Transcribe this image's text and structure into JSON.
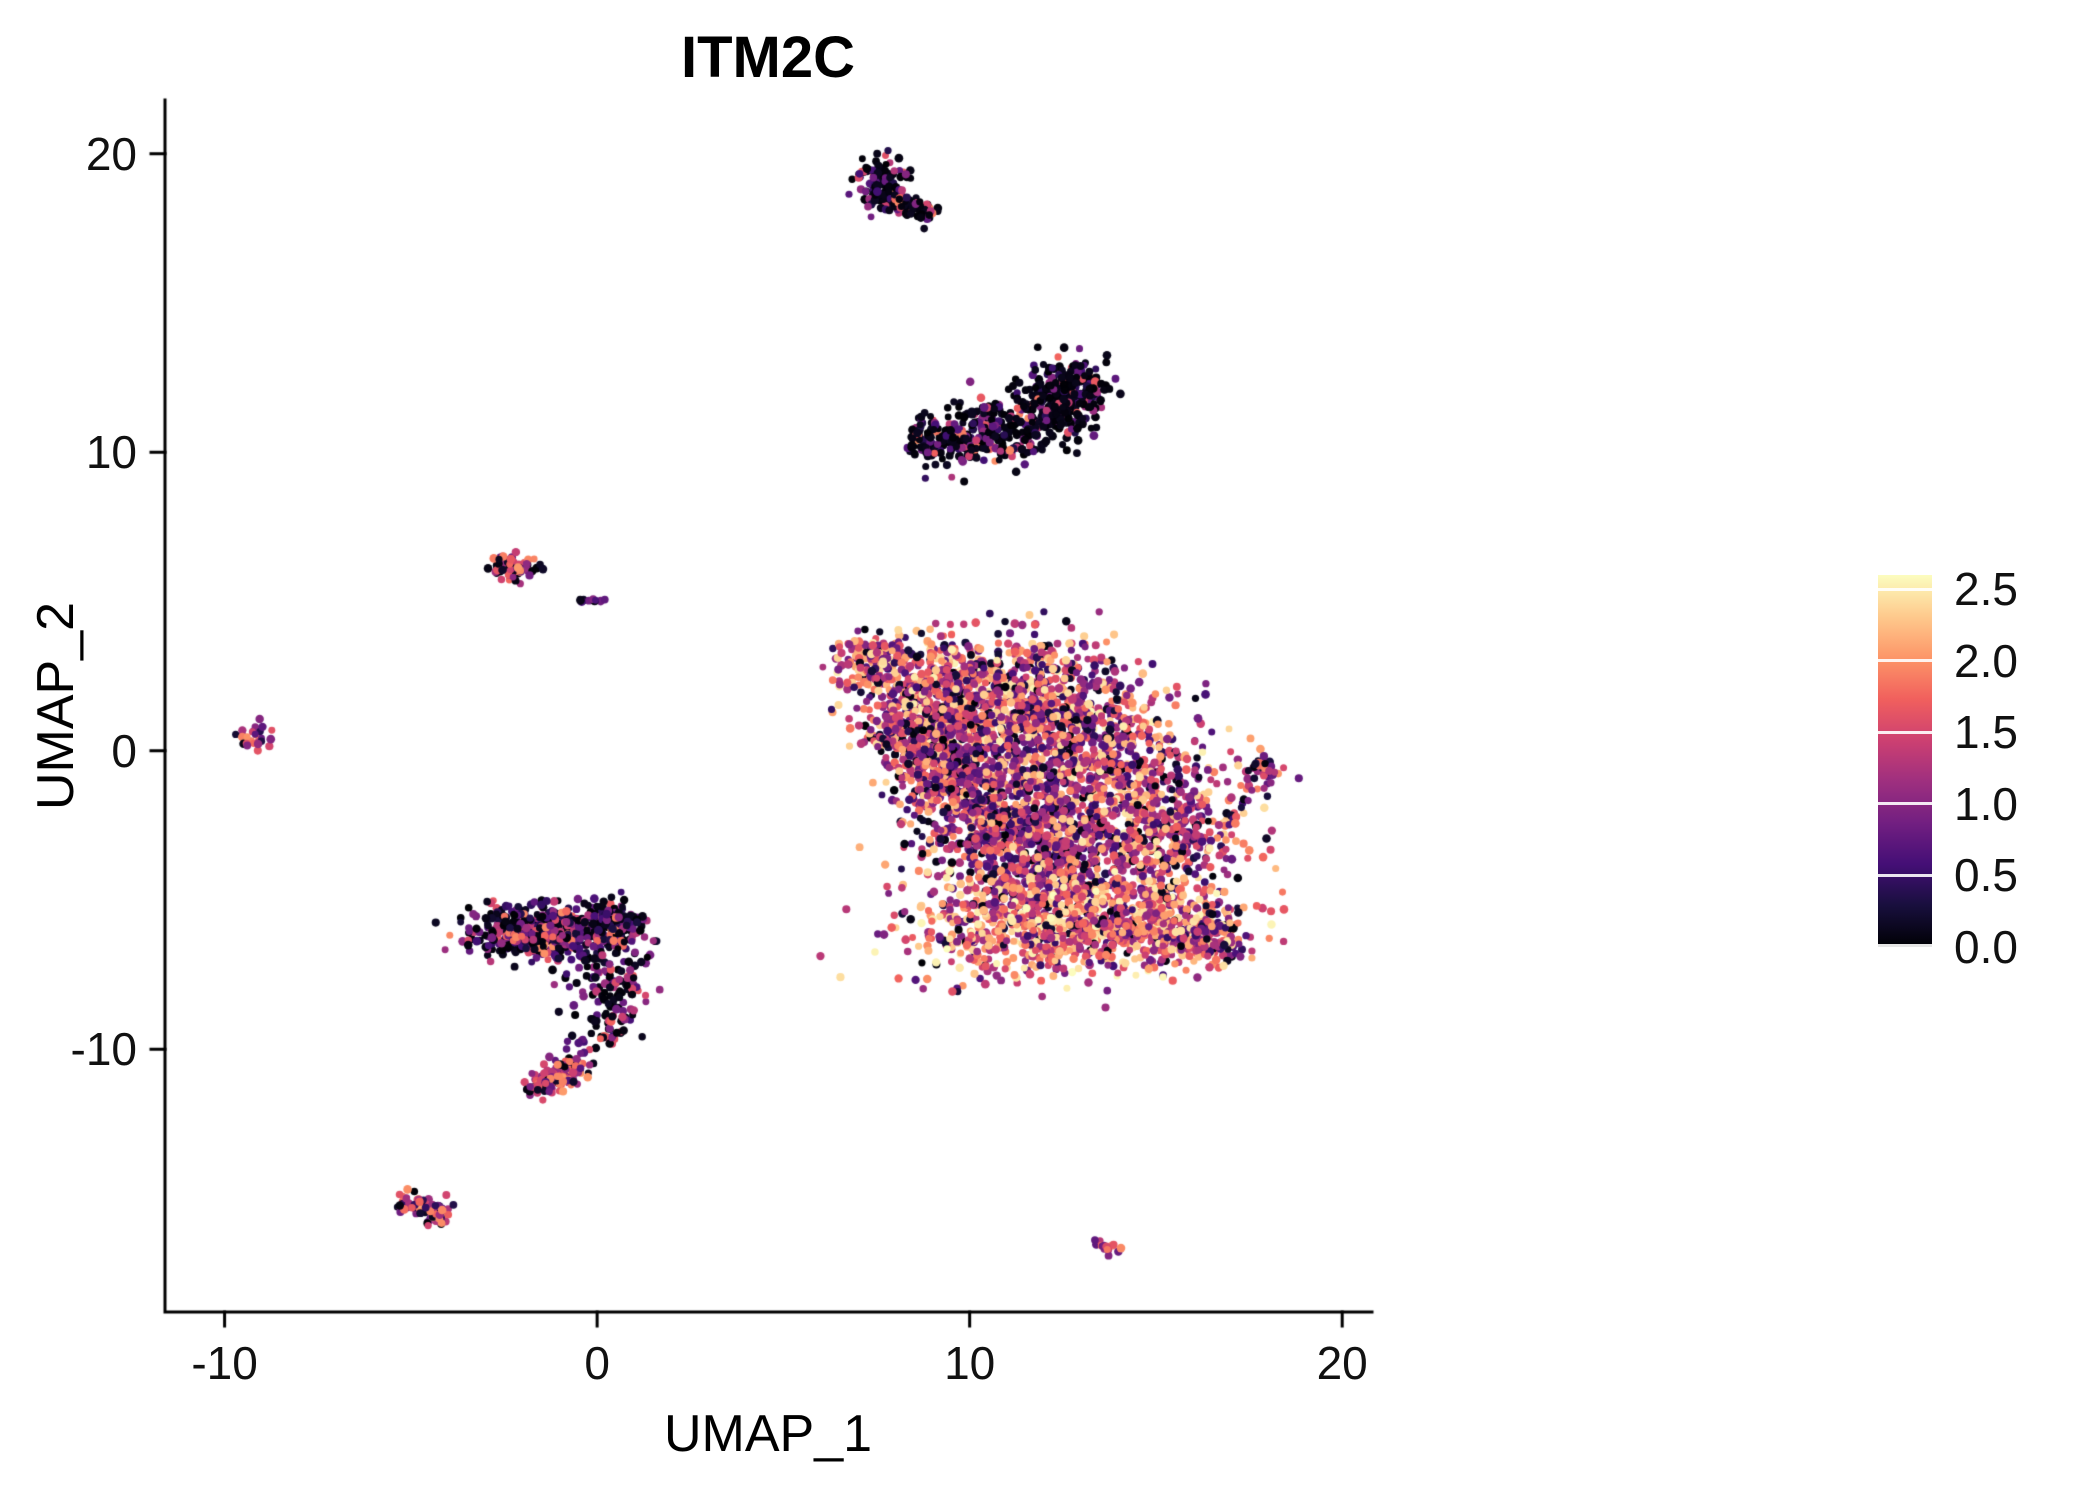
{
  "chart_data": {
    "type": "scatter",
    "title": "ITM2C",
    "xlabel": "UMAP_1",
    "ylabel": "UMAP_2",
    "xlim": [
      -11.6,
      20.8
    ],
    "ylim": [
      -18.8,
      21.8
    ],
    "grid": false,
    "x_ticks": [
      {
        "label": "-10",
        "v": -10
      },
      {
        "label": "0",
        "v": 0
      },
      {
        "label": "10",
        "v": 10
      },
      {
        "label": "20",
        "v": 20
      }
    ],
    "y_ticks": [
      {
        "label": "20",
        "v": 20
      },
      {
        "label": "10",
        "v": 10
      },
      {
        "label": "0",
        "v": 0
      },
      {
        "label": "-10",
        "v": -10
      }
    ],
    "legend": {
      "position": "right",
      "vmin": 0.0,
      "vmax": 2.6,
      "ticks": [
        {
          "label": "2.5",
          "v": 2.5
        },
        {
          "label": "2.0",
          "v": 2.0
        },
        {
          "label": "1.5",
          "v": 1.5
        },
        {
          "label": "1.0",
          "v": 1.0
        },
        {
          "label": "0.5",
          "v": 0.5
        },
        {
          "label": "0.0",
          "v": 0.0
        }
      ]
    },
    "palette": {
      "name": "magma",
      "colors": [
        [
          0,
          0,
          4
        ],
        [
          24,
          15,
          61
        ],
        [
          68,
          15,
          118
        ],
        [
          114,
          31,
          129
        ],
        [
          158,
          47,
          127
        ],
        [
          205,
          64,
          113
        ],
        [
          241,
          96,
          93
        ],
        [
          253,
          150,
          104
        ],
        [
          254,
          202,
          141
        ],
        [
          252,
          253,
          191
        ]
      ]
    },
    "point_radius_px": 4,
    "clusters": [
      {
        "name": "top-comet-head",
        "shape": "gauss",
        "cx": 7.65,
        "cy": 18.95,
        "sx": 0.3,
        "sy": 0.42,
        "n": 115,
        "values": [
          {
            "p": 0.62,
            "min": 0.0,
            "max": 0.15
          },
          {
            "p": 0.2,
            "min": 0.3,
            "max": 0.9
          },
          {
            "p": 0.18,
            "min": 0.9,
            "max": 2.0
          }
        ]
      },
      {
        "name": "top-comet-tail",
        "shape": "seg",
        "x1": 7.9,
        "y1": 18.55,
        "x2": 8.95,
        "y2": 17.85,
        "w": 0.17,
        "n": 70,
        "values": [
          {
            "p": 0.62,
            "min": 0.0,
            "max": 0.15
          },
          {
            "p": 0.2,
            "min": 0.3,
            "max": 0.9
          },
          {
            "p": 0.18,
            "min": 0.9,
            "max": 2.0
          }
        ]
      },
      {
        "name": "crescent-body",
        "shape": "arc",
        "p0": [
          8.4,
          10.55
        ],
        "p1": [
          11.2,
          9.85
        ],
        "p2": [
          13.2,
          12.75
        ],
        "w": 0.5,
        "n": 540,
        "values": [
          {
            "p": 0.66,
            "min": 0.0,
            "max": 0.15
          },
          {
            "p": 0.17,
            "min": 0.3,
            "max": 0.9
          },
          {
            "p": 0.17,
            "min": 0.9,
            "max": 2.0
          }
        ]
      },
      {
        "name": "crescent-end",
        "shape": "gauss",
        "cx": 12.65,
        "cy": 11.9,
        "sx": 0.45,
        "sy": 0.6,
        "n": 150,
        "values": [
          {
            "p": 0.78,
            "min": 0.0,
            "max": 0.12
          },
          {
            "p": 0.12,
            "min": 0.3,
            "max": 0.9
          },
          {
            "p": 0.1,
            "min": 0.9,
            "max": 1.8
          }
        ]
      },
      {
        "name": "main-upper-tip",
        "shape": "gauss",
        "cx": 7.35,
        "cy": 3.0,
        "sx": 0.5,
        "sy": 0.45,
        "n": 130,
        "values": [
          {
            "p": 0.42,
            "min": 1.5,
            "max": 2.55
          },
          {
            "p": 0.3,
            "min": 0.9,
            "max": 1.5
          },
          {
            "p": 0.17,
            "min": 0.4,
            "max": 0.9
          },
          {
            "p": 0.11,
            "min": 0.0,
            "max": 0.3
          }
        ]
      },
      {
        "name": "main-upper-left",
        "shape": "gauss",
        "cx": 8.9,
        "cy": 1.8,
        "sx": 0.95,
        "sy": 0.95,
        "n": 430,
        "values": [
          {
            "p": 0.42,
            "min": 1.5,
            "max": 2.55
          },
          {
            "p": 0.3,
            "min": 0.9,
            "max": 1.5
          },
          {
            "p": 0.17,
            "min": 0.4,
            "max": 0.9
          },
          {
            "p": 0.11,
            "min": 0.0,
            "max": 0.3
          }
        ]
      },
      {
        "name": "main-upper-mid",
        "shape": "gauss",
        "cx": 11.3,
        "cy": 1.9,
        "sx": 1.3,
        "sy": 1.05,
        "n": 640,
        "values": [
          {
            "p": 0.42,
            "min": 1.5,
            "max": 2.55
          },
          {
            "p": 0.3,
            "min": 0.9,
            "max": 1.5
          },
          {
            "p": 0.17,
            "min": 0.4,
            "max": 0.9
          },
          {
            "p": 0.11,
            "min": 0.0,
            "max": 0.3
          }
        ]
      },
      {
        "name": "main-left-edge",
        "shape": "gauss",
        "cx": 8.4,
        "cy": 0.6,
        "sx": 0.6,
        "sy": 0.6,
        "n": 170,
        "values": [
          {
            "p": 0.42,
            "min": 1.5,
            "max": 2.55
          },
          {
            "p": 0.3,
            "min": 0.9,
            "max": 1.5
          },
          {
            "p": 0.17,
            "min": 0.4,
            "max": 0.9
          },
          {
            "p": 0.11,
            "min": 0.0,
            "max": 0.3
          }
        ]
      },
      {
        "name": "main-center-left",
        "shape": "gauss",
        "cx": 9.4,
        "cy": -0.3,
        "sx": 0.75,
        "sy": 0.85,
        "n": 260,
        "values": [
          {
            "p": 0.28,
            "min": 1.5,
            "max": 2.4
          },
          {
            "p": 0.4,
            "min": 0.8,
            "max": 1.5
          },
          {
            "p": 0.2,
            "min": 0.3,
            "max": 0.8
          },
          {
            "p": 0.12,
            "min": 0.0,
            "max": 0.25
          }
        ]
      },
      {
        "name": "main-center",
        "shape": "gauss",
        "cx": 10.4,
        "cy": -1.9,
        "sx": 1.05,
        "sy": 1.2,
        "n": 520,
        "values": [
          {
            "p": 0.28,
            "min": 1.5,
            "max": 2.4
          },
          {
            "p": 0.4,
            "min": 0.8,
            "max": 1.5
          },
          {
            "p": 0.2,
            "min": 0.3,
            "max": 0.8
          },
          {
            "p": 0.12,
            "min": 0.0,
            "max": 0.25
          }
        ]
      },
      {
        "name": "main-center-right",
        "shape": "gauss",
        "cx": 12.4,
        "cy": -3.2,
        "sx": 1.2,
        "sy": 1.15,
        "n": 540,
        "values": [
          {
            "p": 0.28,
            "min": 1.5,
            "max": 2.4
          },
          {
            "p": 0.4,
            "min": 0.8,
            "max": 1.5
          },
          {
            "p": 0.2,
            "min": 0.3,
            "max": 0.8
          },
          {
            "p": 0.12,
            "min": 0.0,
            "max": 0.25
          }
        ]
      },
      {
        "name": "main-right",
        "shape": "gauss",
        "cx": 13.5,
        "cy": -0.1,
        "sx": 1.25,
        "sy": 1.25,
        "n": 560,
        "values": [
          {
            "p": 0.42,
            "min": 1.5,
            "max": 2.55
          },
          {
            "p": 0.3,
            "min": 0.9,
            "max": 1.5
          },
          {
            "p": 0.17,
            "min": 0.4,
            "max": 0.9
          },
          {
            "p": 0.11,
            "min": 0.0,
            "max": 0.3
          }
        ]
      },
      {
        "name": "main-far-right",
        "shape": "gauss",
        "cx": 15.4,
        "cy": -2.7,
        "sx": 1.0,
        "sy": 1.05,
        "n": 390,
        "values": [
          {
            "p": 0.42,
            "min": 1.5,
            "max": 2.55
          },
          {
            "p": 0.3,
            "min": 0.9,
            "max": 1.5
          },
          {
            "p": 0.17,
            "min": 0.4,
            "max": 0.9
          },
          {
            "p": 0.11,
            "min": 0.0,
            "max": 0.3
          }
        ]
      },
      {
        "name": "main-bottom-band",
        "shape": "gauss",
        "cx": 11.6,
        "cy": -5.9,
        "sx": 1.7,
        "sy": 0.95,
        "n": 660,
        "values": [
          {
            "p": 0.55,
            "min": 1.6,
            "max": 2.6
          },
          {
            "p": 0.27,
            "min": 1.0,
            "max": 1.6
          },
          {
            "p": 0.12,
            "min": 0.4,
            "max": 1.0
          },
          {
            "p": 0.06,
            "min": 0.0,
            "max": 0.3
          }
        ]
      },
      {
        "name": "main-bottom-right",
        "shape": "gauss",
        "cx": 14.8,
        "cy": -5.7,
        "sx": 1.15,
        "sy": 0.8,
        "n": 430,
        "values": [
          {
            "p": 0.55,
            "min": 1.6,
            "max": 2.6
          },
          {
            "p": 0.27,
            "min": 1.0,
            "max": 1.6
          },
          {
            "p": 0.12,
            "min": 0.4,
            "max": 1.0
          },
          {
            "p": 0.06,
            "min": 0.0,
            "max": 0.3
          }
        ]
      },
      {
        "name": "main-bottom-tail",
        "shape": "gauss",
        "cx": 16.4,
        "cy": -6.3,
        "sx": 0.6,
        "sy": 0.45,
        "n": 150,
        "values": [
          {
            "p": 0.42,
            "min": 1.5,
            "max": 2.55
          },
          {
            "p": 0.3,
            "min": 0.9,
            "max": 1.5
          },
          {
            "p": 0.17,
            "min": 0.4,
            "max": 0.9
          },
          {
            "p": 0.11,
            "min": 0.0,
            "max": 0.3
          }
        ]
      },
      {
        "name": "right-small",
        "shape": "gauss",
        "cx": 17.9,
        "cy": -0.75,
        "sx": 0.27,
        "sy": 0.35,
        "n": 48,
        "values": [
          {
            "p": 0.5,
            "min": 1.2,
            "max": 2.1
          },
          {
            "p": 0.3,
            "min": 0.7,
            "max": 1.2
          },
          {
            "p": 0.2,
            "min": 0.0,
            "max": 0.4
          }
        ]
      },
      {
        "name": "left-band",
        "shape": "gauss",
        "cx": -1.5,
        "cy": -6.05,
        "sx": 0.85,
        "sy": 0.42,
        "n": 540,
        "values": [
          {
            "p": 0.34,
            "min": 0.0,
            "max": 0.15
          },
          {
            "p": 0.2,
            "min": 0.2,
            "max": 0.6
          },
          {
            "p": 0.3,
            "min": 0.6,
            "max": 1.3
          },
          {
            "p": 0.16,
            "min": 1.3,
            "max": 2.0
          }
        ]
      },
      {
        "name": "left-clump",
        "shape": "gauss",
        "cx": 0.35,
        "cy": -5.85,
        "sx": 0.45,
        "sy": 0.38,
        "n": 170,
        "values": [
          {
            "p": 0.34,
            "min": 0.0,
            "max": 0.15
          },
          {
            "p": 0.2,
            "min": 0.2,
            "max": 0.6
          },
          {
            "p": 0.3,
            "min": 0.6,
            "max": 1.3
          },
          {
            "p": 0.16,
            "min": 1.3,
            "max": 2.0
          }
        ]
      },
      {
        "name": "left-sparse",
        "shape": "gauss",
        "cx": 0.0,
        "cy": -7.5,
        "sx": 0.55,
        "sy": 0.65,
        "n": 55,
        "values": [
          {
            "p": 0.5,
            "min": 0.0,
            "max": 0.15
          },
          {
            "p": 0.3,
            "min": 0.5,
            "max": 1.1
          },
          {
            "p": 0.2,
            "min": 1.1,
            "max": 1.8
          }
        ]
      },
      {
        "name": "left-trail-arc",
        "shape": "arc",
        "p0": [
          0.85,
          -6.7
        ],
        "p1": [
          1.15,
          -8.7
        ],
        "p2": [
          -0.45,
          -10.15
        ],
        "w": 0.32,
        "n": 105,
        "values": [
          {
            "p": 0.5,
            "min": 0.0,
            "max": 0.15
          },
          {
            "p": 0.3,
            "min": 0.5,
            "max": 1.1
          },
          {
            "p": 0.2,
            "min": 1.1,
            "max": 1.8
          }
        ]
      },
      {
        "name": "left-bottom-clump",
        "shape": "seg",
        "x1": -1.7,
        "y1": -11.35,
        "x2": -0.5,
        "y2": -10.5,
        "w": 0.27,
        "n": 135,
        "values": [
          {
            "p": 0.18,
            "min": 0.0,
            "max": 0.2
          },
          {
            "p": 0.3,
            "min": 0.6,
            "max": 1.2
          },
          {
            "p": 0.52,
            "min": 1.2,
            "max": 2.05
          }
        ]
      },
      {
        "name": "upper-left-clump",
        "shape": "gauss",
        "cx": -2.2,
        "cy": 6.1,
        "sx": 0.32,
        "sy": 0.23,
        "n": 75,
        "values": [
          {
            "p": 0.28,
            "min": 0.0,
            "max": 0.2
          },
          {
            "p": 0.3,
            "min": 0.6,
            "max": 1.2
          },
          {
            "p": 0.42,
            "min": 1.2,
            "max": 2.1
          }
        ]
      },
      {
        "name": "upper-left-dots",
        "shape": "seg",
        "x1": -0.5,
        "y1": 5.1,
        "x2": 0.3,
        "y2": 5.0,
        "w": 0.09,
        "n": 10,
        "values": [
          {
            "p": 0.6,
            "min": 0.6,
            "max": 1.1
          },
          {
            "p": 0.4,
            "min": 0.0,
            "max": 0.3
          }
        ]
      },
      {
        "name": "far-left-small",
        "shape": "gauss",
        "cx": -9.2,
        "cy": 0.45,
        "sx": 0.23,
        "sy": 0.2,
        "n": 30,
        "values": [
          {
            "p": 0.5,
            "min": 1.2,
            "max": 2.1
          },
          {
            "p": 0.3,
            "min": 0.7,
            "max": 1.2
          },
          {
            "p": 0.2,
            "min": 0.0,
            "max": 0.4
          }
        ]
      },
      {
        "name": "bottom-left-small",
        "shape": "seg",
        "x1": -5.3,
        "y1": -15.05,
        "x2": -4.05,
        "y2": -15.6,
        "w": 0.2,
        "n": 80,
        "values": [
          {
            "p": 0.42,
            "min": 1.3,
            "max": 2.2
          },
          {
            "p": 0.3,
            "min": 0.7,
            "max": 1.3
          },
          {
            "p": 0.28,
            "min": 0.0,
            "max": 0.5
          }
        ]
      },
      {
        "name": "bottom-right-tiny",
        "shape": "seg",
        "x1": 13.35,
        "y1": -16.4,
        "x2": 13.95,
        "y2": -16.75,
        "w": 0.11,
        "n": 16,
        "values": [
          {
            "p": 0.7,
            "min": 1.3,
            "max": 2.0
          },
          {
            "p": 0.3,
            "min": 0.6,
            "max": 1.2
          }
        ]
      }
    ]
  }
}
